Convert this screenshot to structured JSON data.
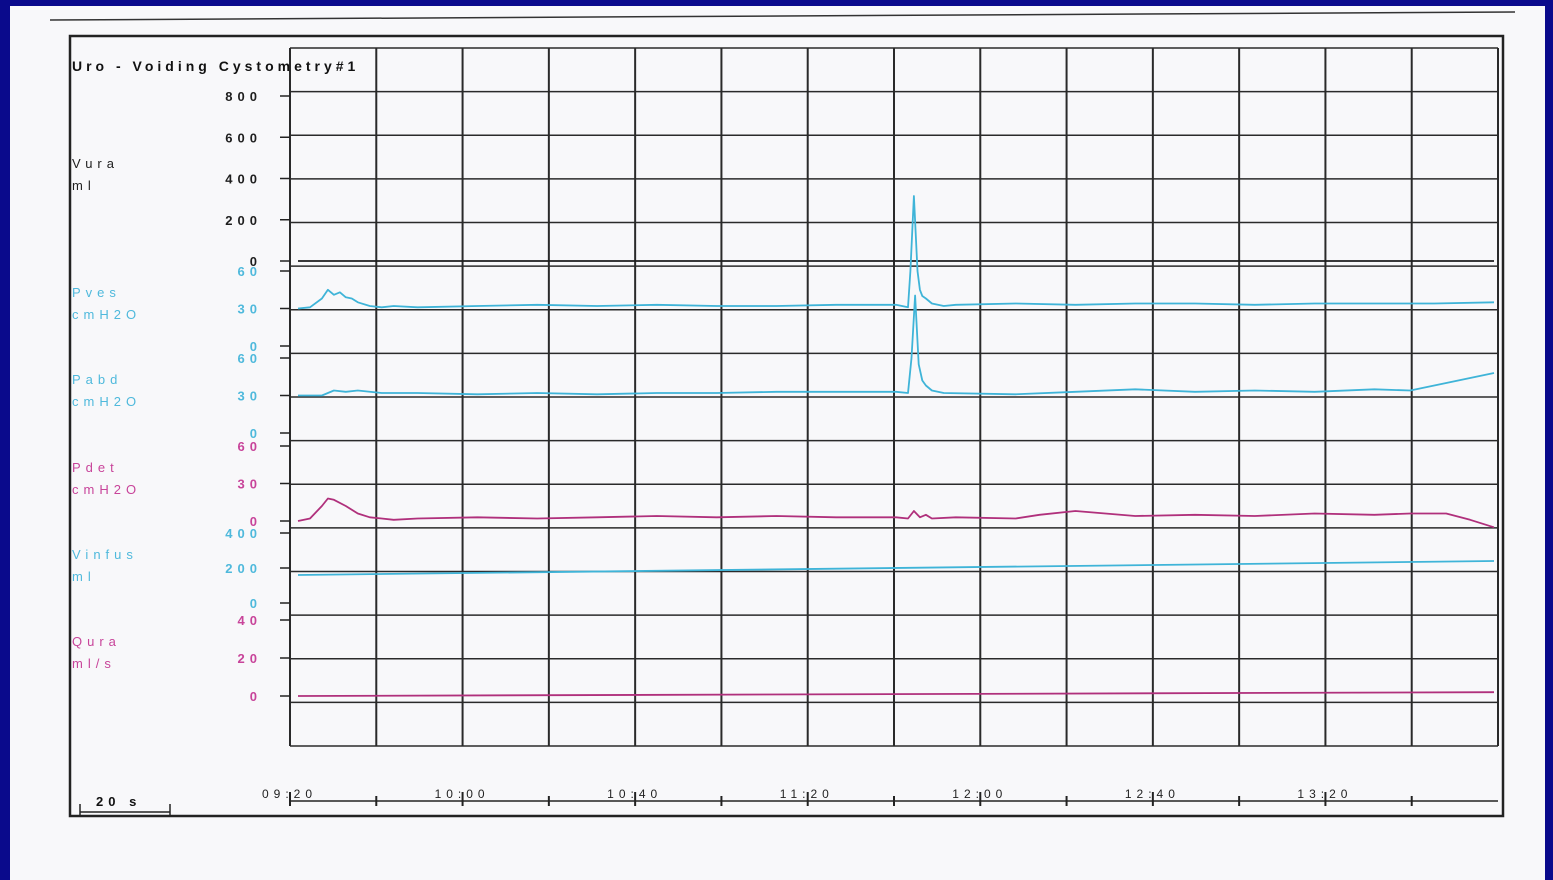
{
  "chart_data": {
    "type": "line",
    "title": "Uro - Voiding Cystometry#1",
    "scale_label": "20 s",
    "x_ticks": [
      "09:20",
      "10:00",
      "10:40",
      "11:20",
      "12:00",
      "12:40",
      "13:20"
    ],
    "grid": true,
    "channels": [
      {
        "name": "Vura",
        "unit": "ml",
        "color": "#1e1e1e",
        "label_color": "#1e1e1e",
        "ticks": [
          "800",
          "600",
          "400",
          "200",
          "0"
        ],
        "range": [
          0,
          800
        ],
        "x": [
          0,
          1
        ],
        "values": [
          0,
          0
        ]
      },
      {
        "name": "Pves",
        "unit": "cmH2O",
        "color": "#3fb4d8",
        "label_color": "#4fb9dc",
        "ticks": [
          "60",
          "30",
          "0"
        ],
        "range": [
          0,
          60
        ],
        "x": [
          0,
          0.01,
          0.02,
          0.025,
          0.03,
          0.035,
          0.04,
          0.045,
          0.05,
          0.06,
          0.07,
          0.08,
          0.1,
          0.15,
          0.2,
          0.25,
          0.3,
          0.35,
          0.4,
          0.45,
          0.5,
          0.51,
          0.512,
          0.515,
          0.518,
          0.52,
          0.522,
          0.525,
          0.53,
          0.54,
          0.55,
          0.6,
          0.65,
          0.7,
          0.75,
          0.8,
          0.85,
          0.9,
          0.95,
          1.0
        ],
        "values": [
          30,
          31,
          38,
          45,
          41,
          43,
          39,
          38,
          35,
          32,
          31,
          32,
          31,
          32,
          33,
          32,
          33,
          32,
          32,
          33,
          33,
          31,
          60,
          120,
          60,
          45,
          40,
          38,
          34,
          32,
          33,
          34,
          33,
          34,
          34,
          33,
          34,
          34,
          34,
          35
        ]
      },
      {
        "name": "Pabd",
        "unit": "cmH2O",
        "color": "#3fb4d8",
        "label_color": "#4fb9dc",
        "ticks": [
          "60",
          "30",
          "0"
        ],
        "range": [
          0,
          60
        ],
        "x": [
          0,
          0.02,
          0.03,
          0.04,
          0.05,
          0.07,
          0.1,
          0.15,
          0.2,
          0.25,
          0.3,
          0.35,
          0.4,
          0.45,
          0.5,
          0.51,
          0.513,
          0.516,
          0.519,
          0.522,
          0.525,
          0.53,
          0.54,
          0.6,
          0.65,
          0.7,
          0.75,
          0.8,
          0.85,
          0.9,
          0.93,
          0.96,
          1.0
        ],
        "values": [
          30,
          30,
          34,
          33,
          34,
          32,
          32,
          31,
          32,
          31,
          32,
          32,
          33,
          33,
          33,
          32,
          60,
          110,
          55,
          42,
          38,
          34,
          32,
          31,
          33,
          35,
          33,
          34,
          33,
          35,
          34,
          40,
          48
        ]
      },
      {
        "name": "Pdet",
        "unit": "cmH2O",
        "color": "#b0307c",
        "label_color": "#c8449a",
        "ticks": [
          "60",
          "30",
          "0"
        ],
        "range": [
          0,
          60
        ],
        "x": [
          0,
          0.01,
          0.02,
          0.025,
          0.03,
          0.04,
          0.05,
          0.06,
          0.07,
          0.08,
          0.1,
          0.15,
          0.2,
          0.25,
          0.3,
          0.35,
          0.4,
          0.45,
          0.5,
          0.51,
          0.515,
          0.52,
          0.525,
          0.53,
          0.55,
          0.6,
          0.62,
          0.65,
          0.7,
          0.75,
          0.8,
          0.85,
          0.9,
          0.93,
          0.96,
          0.98,
          1.0
        ],
        "values": [
          0,
          2,
          12,
          18,
          17,
          12,
          6,
          3,
          2,
          1,
          2,
          3,
          2,
          3,
          4,
          3,
          4,
          3,
          3,
          2,
          8,
          3,
          5,
          2,
          3,
          2,
          5,
          8,
          4,
          5,
          4,
          6,
          5,
          6,
          6,
          1,
          -5
        ]
      },
      {
        "name": "Vinfus",
        "unit": "ml",
        "color": "#3fb4d8",
        "label_color": "#4fb9dc",
        "ticks": [
          "400",
          "200",
          "0"
        ],
        "range": [
          0,
          400
        ],
        "x": [
          0,
          1
        ],
        "values": [
          160,
          240
        ]
      },
      {
        "name": "Qura",
        "unit": "ml/s",
        "color": "#b0307c",
        "label_color": "#c8449a",
        "ticks": [
          "40",
          "20",
          "0"
        ],
        "range": [
          0,
          40
        ],
        "x": [
          0,
          1
        ],
        "values": [
          0,
          2
        ]
      }
    ]
  }
}
